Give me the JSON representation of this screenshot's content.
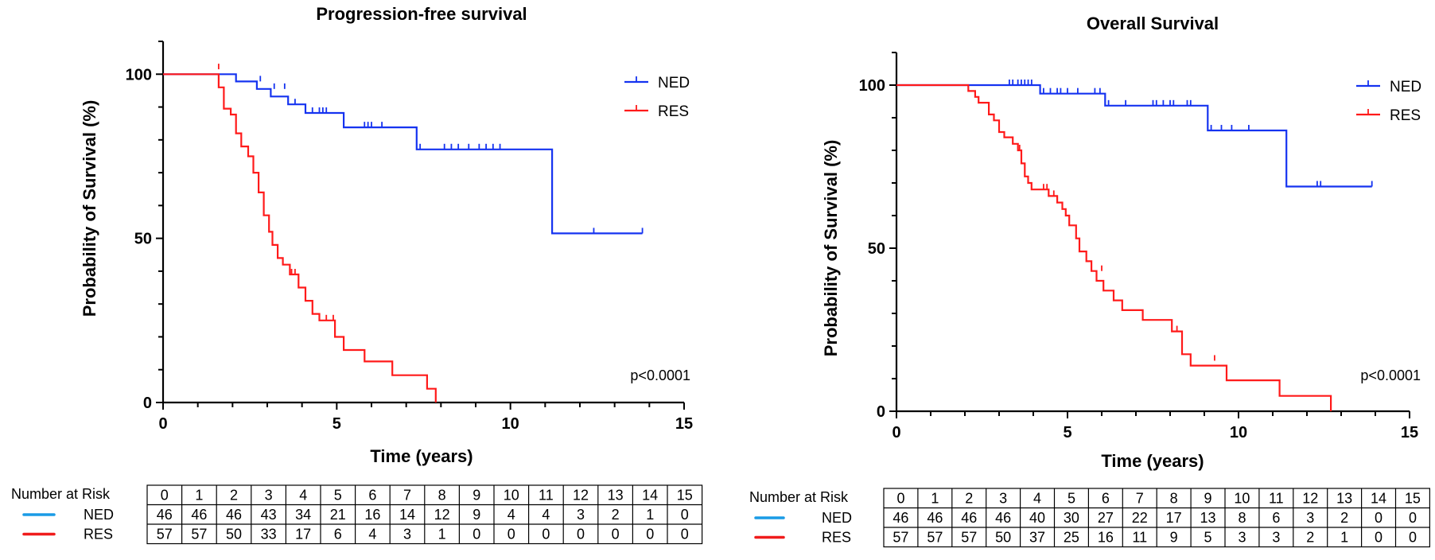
{
  "colors": {
    "NED": "#1533f0",
    "RES": "#ff1a1a",
    "NED_risk": "#1a9be6",
    "RES_risk": "#f01c1c",
    "axis": "#000000"
  },
  "chart_data": [
    {
      "type": "line",
      "step": true,
      "title": "Progression-free survival",
      "xlabel": "Time (years)",
      "ylabel": "Probability of Survival (%)",
      "xlim": [
        0,
        15
      ],
      "ylim": [
        0,
        110
      ],
      "xticks": [
        "0",
        "5",
        "10",
        "15"
      ],
      "yticks": [
        "0",
        "50",
        "100"
      ],
      "legend_position": "top-right",
      "annotation": "p<0.0001",
      "series": [
        {
          "name": "NED",
          "points": [
            [
              0,
              100
            ],
            [
              2.1,
              100
            ],
            [
              2.1,
              97.8
            ],
            [
              2.7,
              97.8
            ],
            [
              2.7,
              95.5
            ],
            [
              3.1,
              95.5
            ],
            [
              3.1,
              93.2
            ],
            [
              3.6,
              93.2
            ],
            [
              3.6,
              90.8
            ],
            [
              4.1,
              90.8
            ],
            [
              4.1,
              88.2
            ],
            [
              5.2,
              88.2
            ],
            [
              5.2,
              83.8
            ],
            [
              7.3,
              83.8
            ],
            [
              7.3,
              77.1
            ],
            [
              11.2,
              77.1
            ],
            [
              11.2,
              51.5
            ],
            [
              13.8,
              51.5
            ]
          ],
          "censor": [
            [
              2.8,
              97.8
            ],
            [
              3.2,
              95.5
            ],
            [
              3.5,
              95.5
            ],
            [
              3.8,
              90.8
            ],
            [
              4.3,
              88.2
            ],
            [
              4.5,
              88.2
            ],
            [
              4.6,
              88.2
            ],
            [
              4.7,
              88.2
            ],
            [
              5.8,
              83.8
            ],
            [
              5.9,
              83.8
            ],
            [
              6.0,
              83.8
            ],
            [
              6.3,
              83.8
            ],
            [
              7.4,
              77.1
            ],
            [
              8.1,
              77.1
            ],
            [
              8.3,
              77.1
            ],
            [
              8.5,
              77.1
            ],
            [
              8.8,
              77.1
            ],
            [
              9.1,
              77.1
            ],
            [
              9.3,
              77.1
            ],
            [
              9.5,
              77.1
            ],
            [
              9.7,
              77.1
            ],
            [
              12.4,
              51.5
            ],
            [
              13.8,
              51.5
            ]
          ]
        },
        {
          "name": "RES",
          "points": [
            [
              0,
              100
            ],
            [
              1.6,
              100
            ],
            [
              1.6,
              96
            ],
            [
              1.75,
              96
            ],
            [
              1.75,
              89.5
            ],
            [
              1.95,
              89.5
            ],
            [
              1.95,
              87.7
            ],
            [
              2.1,
              87.7
            ],
            [
              2.1,
              82
            ],
            [
              2.25,
              82
            ],
            [
              2.25,
              78
            ],
            [
              2.45,
              78
            ],
            [
              2.45,
              75
            ],
            [
              2.6,
              75
            ],
            [
              2.6,
              70
            ],
            [
              2.75,
              70
            ],
            [
              2.75,
              64
            ],
            [
              2.9,
              64
            ],
            [
              2.9,
              57
            ],
            [
              3.05,
              57
            ],
            [
              3.05,
              52
            ],
            [
              3.15,
              52
            ],
            [
              3.15,
              48
            ],
            [
              3.3,
              48
            ],
            [
              3.3,
              44
            ],
            [
              3.45,
              44
            ],
            [
              3.45,
              42
            ],
            [
              3.65,
              42
            ],
            [
              3.65,
              39
            ],
            [
              3.9,
              39
            ],
            [
              3.9,
              35
            ],
            [
              4.1,
              35
            ],
            [
              4.1,
              31
            ],
            [
              4.3,
              31
            ],
            [
              4.3,
              27
            ],
            [
              4.5,
              27
            ],
            [
              4.5,
              25
            ],
            [
              4.95,
              25
            ],
            [
              4.95,
              20
            ],
            [
              5.2,
              20
            ],
            [
              5.2,
              16
            ],
            [
              5.8,
              16
            ],
            [
              5.8,
              12.5
            ],
            [
              6.6,
              12.5
            ],
            [
              6.6,
              8.3
            ],
            [
              7.6,
              8.3
            ],
            [
              7.6,
              4.2
            ],
            [
              7.85,
              4.2
            ],
            [
              7.85,
              0
            ]
          ],
          "censor": [
            [
              1.6,
              101.5
            ],
            [
              3.7,
              39
            ],
            [
              3.8,
              39
            ],
            [
              4.7,
              25
            ],
            [
              4.9,
              25
            ]
          ]
        }
      ],
      "risk_table": {
        "header_label": "Number at Risk",
        "times": [
          "0",
          "1",
          "2",
          "3",
          "4",
          "5",
          "6",
          "7",
          "8",
          "9",
          "10",
          "11",
          "12",
          "13",
          "14",
          "15"
        ],
        "rows": [
          {
            "name": "NED",
            "values": [
              "46",
              "46",
              "46",
              "43",
              "34",
              "21",
              "16",
              "14",
              "12",
              "9",
              "4",
              "4",
              "3",
              "2",
              "1",
              "0"
            ]
          },
          {
            "name": "RES",
            "values": [
              "57",
              "57",
              "50",
              "33",
              "17",
              "6",
              "4",
              "3",
              "1",
              "0",
              "0",
              "0",
              "0",
              "0",
              "0",
              "0"
            ]
          }
        ]
      }
    },
    {
      "type": "line",
      "step": true,
      "title": "Overall Survival",
      "xlabel": "Time (years)",
      "ylabel": "Probability of Survival (%)",
      "xlim": [
        0,
        15
      ],
      "ylim": [
        0,
        110
      ],
      "xticks": [
        "0",
        "5",
        "10",
        "15"
      ],
      "yticks": [
        "0",
        "50",
        "100"
      ],
      "legend_position": "top-right",
      "annotation": "p<0.0001",
      "series": [
        {
          "name": "NED",
          "points": [
            [
              0,
              100
            ],
            [
              4.2,
              100
            ],
            [
              4.2,
              97.4
            ],
            [
              6.1,
              97.4
            ],
            [
              6.1,
              93.7
            ],
            [
              9.1,
              93.7
            ],
            [
              9.1,
              86.1
            ],
            [
              11.4,
              86.1
            ],
            [
              11.4,
              68.9
            ],
            [
              13.9,
              68.9
            ]
          ],
          "censor": [
            [
              3.3,
              100
            ],
            [
              3.4,
              100
            ],
            [
              3.55,
              100
            ],
            [
              3.65,
              100
            ],
            [
              3.75,
              100
            ],
            [
              3.85,
              100
            ],
            [
              3.95,
              100
            ],
            [
              4.3,
              97.4
            ],
            [
              4.5,
              97.4
            ],
            [
              4.7,
              97.4
            ],
            [
              4.8,
              97.4
            ],
            [
              5.0,
              97.4
            ],
            [
              5.3,
              97.4
            ],
            [
              5.8,
              97.4
            ],
            [
              5.95,
              97.4
            ],
            [
              6.2,
              93.7
            ],
            [
              6.7,
              93.7
            ],
            [
              7.5,
              93.7
            ],
            [
              7.6,
              93.7
            ],
            [
              7.8,
              93.7
            ],
            [
              8.0,
              93.7
            ],
            [
              8.1,
              93.7
            ],
            [
              8.5,
              93.7
            ],
            [
              8.6,
              93.7
            ],
            [
              9.2,
              86.1
            ],
            [
              9.5,
              86.1
            ],
            [
              9.8,
              86.1
            ],
            [
              10.3,
              86.1
            ],
            [
              12.3,
              68.9
            ],
            [
              12.4,
              68.9
            ],
            [
              13.9,
              68.9
            ]
          ]
        },
        {
          "name": "RES",
          "points": [
            [
              0,
              100
            ],
            [
              2.1,
              100
            ],
            [
              2.1,
              98.2
            ],
            [
              2.3,
              98.2
            ],
            [
              2.3,
              96.4
            ],
            [
              2.4,
              96.4
            ],
            [
              2.4,
              94.6
            ],
            [
              2.7,
              94.6
            ],
            [
              2.7,
              91
            ],
            [
              2.85,
              91
            ],
            [
              2.85,
              89.2
            ],
            [
              3.0,
              89.2
            ],
            [
              3.0,
              85.6
            ],
            [
              3.15,
              85.6
            ],
            [
              3.15,
              84
            ],
            [
              3.4,
              84
            ],
            [
              3.4,
              82
            ],
            [
              3.55,
              82
            ],
            [
              3.55,
              80
            ],
            [
              3.65,
              80
            ],
            [
              3.65,
              76
            ],
            [
              3.75,
              76
            ],
            [
              3.75,
              72
            ],
            [
              3.85,
              72
            ],
            [
              3.85,
              70
            ],
            [
              3.95,
              70
            ],
            [
              3.95,
              68
            ],
            [
              4.45,
              68
            ],
            [
              4.45,
              66
            ],
            [
              4.7,
              66
            ],
            [
              4.7,
              64
            ],
            [
              4.85,
              64
            ],
            [
              4.85,
              62
            ],
            [
              4.95,
              62
            ],
            [
              4.95,
              60
            ],
            [
              5.05,
              60
            ],
            [
              5.05,
              57
            ],
            [
              5.25,
              57
            ],
            [
              5.25,
              53
            ],
            [
              5.35,
              53
            ],
            [
              5.35,
              49
            ],
            [
              5.55,
              49
            ],
            [
              5.55,
              46
            ],
            [
              5.7,
              46
            ],
            [
              5.7,
              43
            ],
            [
              5.85,
              43
            ],
            [
              5.85,
              40
            ],
            [
              6.05,
              40
            ],
            [
              6.05,
              37
            ],
            [
              6.35,
              37
            ],
            [
              6.35,
              34
            ],
            [
              6.6,
              34
            ],
            [
              6.6,
              31
            ],
            [
              7.2,
              31
            ],
            [
              7.2,
              28
            ],
            [
              8.05,
              28
            ],
            [
              8.05,
              24.5
            ],
            [
              8.35,
              24.5
            ],
            [
              8.35,
              17.5
            ],
            [
              8.6,
              17.5
            ],
            [
              8.6,
              14
            ],
            [
              9.65,
              14
            ],
            [
              9.65,
              9.5
            ],
            [
              11.2,
              9.5
            ],
            [
              11.2,
              4.7
            ],
            [
              12.7,
              4.7
            ],
            [
              12.7,
              0
            ]
          ],
          "censor": [
            [
              3.6,
              80
            ],
            [
              4.3,
              68
            ],
            [
              4.4,
              68
            ],
            [
              4.6,
              66
            ],
            [
              6.0,
              43
            ],
            [
              8.2,
              24.5
            ],
            [
              9.3,
              15.5
            ]
          ]
        }
      ],
      "risk_table": {
        "header_label": "Number at Risk",
        "times": [
          "0",
          "1",
          "2",
          "3",
          "4",
          "5",
          "6",
          "7",
          "8",
          "9",
          "10",
          "11",
          "12",
          "13",
          "14",
          "15"
        ],
        "rows": [
          {
            "name": "NED",
            "values": [
              "46",
              "46",
              "46",
              "46",
              "40",
              "30",
              "27",
              "22",
              "17",
              "13",
              "8",
              "6",
              "3",
              "2",
              "0",
              "0"
            ]
          },
          {
            "name": "RES",
            "values": [
              "57",
              "57",
              "57",
              "50",
              "37",
              "25",
              "16",
              "11",
              "9",
              "5",
              "3",
              "3",
              "2",
              "1",
              "0",
              "0"
            ]
          }
        ]
      }
    }
  ]
}
